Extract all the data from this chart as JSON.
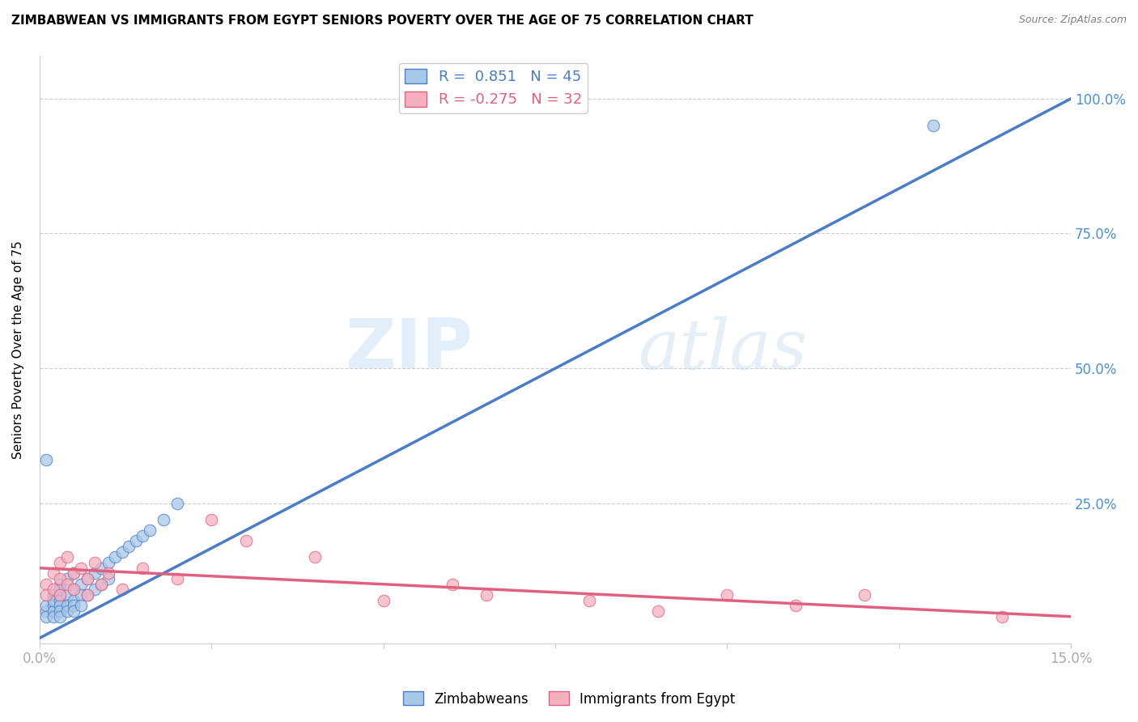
{
  "title": "ZIMBABWEAN VS IMMIGRANTS FROM EGYPT SENIORS POVERTY OVER THE AGE OF 75 CORRELATION CHART",
  "source": "Source: ZipAtlas.com",
  "ylabel": "Seniors Poverty Over the Age of 75",
  "xlim": [
    0.0,
    0.15
  ],
  "ylim": [
    -0.01,
    1.08
  ],
  "xticks": [
    0.0,
    0.025,
    0.05,
    0.075,
    0.1,
    0.125,
    0.15
  ],
  "xticklabels": [
    "0.0%",
    "",
    "",
    "",
    "",
    "",
    "15.0%"
  ],
  "yticks_right": [
    0.0,
    0.25,
    0.5,
    0.75,
    1.0
  ],
  "yticklabels_right": [
    "",
    "25.0%",
    "50.0%",
    "75.0%",
    "100.0%"
  ],
  "blue_color": "#a8c8e8",
  "pink_color": "#f4b0c0",
  "blue_line_color": "#4a7cc9",
  "pink_line_color": "#e06080",
  "R_blue": 0.851,
  "N_blue": 45,
  "R_pink": -0.275,
  "N_pink": 32,
  "watermark_zip": "ZIP",
  "watermark_atlas": "atlas",
  "legend_label_blue": "Zimbabweans",
  "legend_label_pink": "Immigrants from Egypt",
  "blue_scatter_x": [
    0.001,
    0.001,
    0.001,
    0.002,
    0.002,
    0.002,
    0.002,
    0.002,
    0.003,
    0.003,
    0.003,
    0.003,
    0.003,
    0.003,
    0.003,
    0.004,
    0.004,
    0.004,
    0.004,
    0.005,
    0.005,
    0.005,
    0.005,
    0.005,
    0.006,
    0.006,
    0.006,
    0.007,
    0.007,
    0.008,
    0.008,
    0.009,
    0.009,
    0.01,
    0.01,
    0.011,
    0.012,
    0.013,
    0.014,
    0.015,
    0.016,
    0.018,
    0.02,
    0.13,
    0.001
  ],
  "blue_scatter_y": [
    0.05,
    0.06,
    0.04,
    0.08,
    0.06,
    0.05,
    0.07,
    0.04,
    0.1,
    0.08,
    0.07,
    0.06,
    0.05,
    0.09,
    0.04,
    0.11,
    0.08,
    0.06,
    0.05,
    0.12,
    0.09,
    0.07,
    0.06,
    0.05,
    0.1,
    0.08,
    0.06,
    0.11,
    0.08,
    0.12,
    0.09,
    0.13,
    0.1,
    0.14,
    0.11,
    0.15,
    0.16,
    0.17,
    0.18,
    0.19,
    0.2,
    0.22,
    0.25,
    0.95,
    0.33
  ],
  "pink_scatter_x": [
    0.001,
    0.001,
    0.002,
    0.002,
    0.003,
    0.003,
    0.003,
    0.004,
    0.004,
    0.005,
    0.005,
    0.006,
    0.007,
    0.007,
    0.008,
    0.009,
    0.01,
    0.012,
    0.015,
    0.02,
    0.025,
    0.03,
    0.04,
    0.05,
    0.06,
    0.065,
    0.08,
    0.09,
    0.1,
    0.11,
    0.12,
    0.14
  ],
  "pink_scatter_y": [
    0.1,
    0.08,
    0.12,
    0.09,
    0.14,
    0.11,
    0.08,
    0.15,
    0.1,
    0.12,
    0.09,
    0.13,
    0.11,
    0.08,
    0.14,
    0.1,
    0.12,
    0.09,
    0.13,
    0.11,
    0.22,
    0.18,
    0.15,
    0.07,
    0.1,
    0.08,
    0.07,
    0.05,
    0.08,
    0.06,
    0.08,
    0.04
  ],
  "blue_line_x": [
    0.0,
    0.15
  ],
  "blue_line_y": [
    0.0,
    1.0
  ],
  "pink_line_x": [
    0.0,
    0.15
  ],
  "pink_line_y": [
    0.13,
    0.04
  ],
  "background_color": "#ffffff",
  "grid_color": "#cccccc",
  "title_fontsize": 11,
  "axis_label_color": "#4a90d9",
  "tick_color": "#aaaaaa"
}
